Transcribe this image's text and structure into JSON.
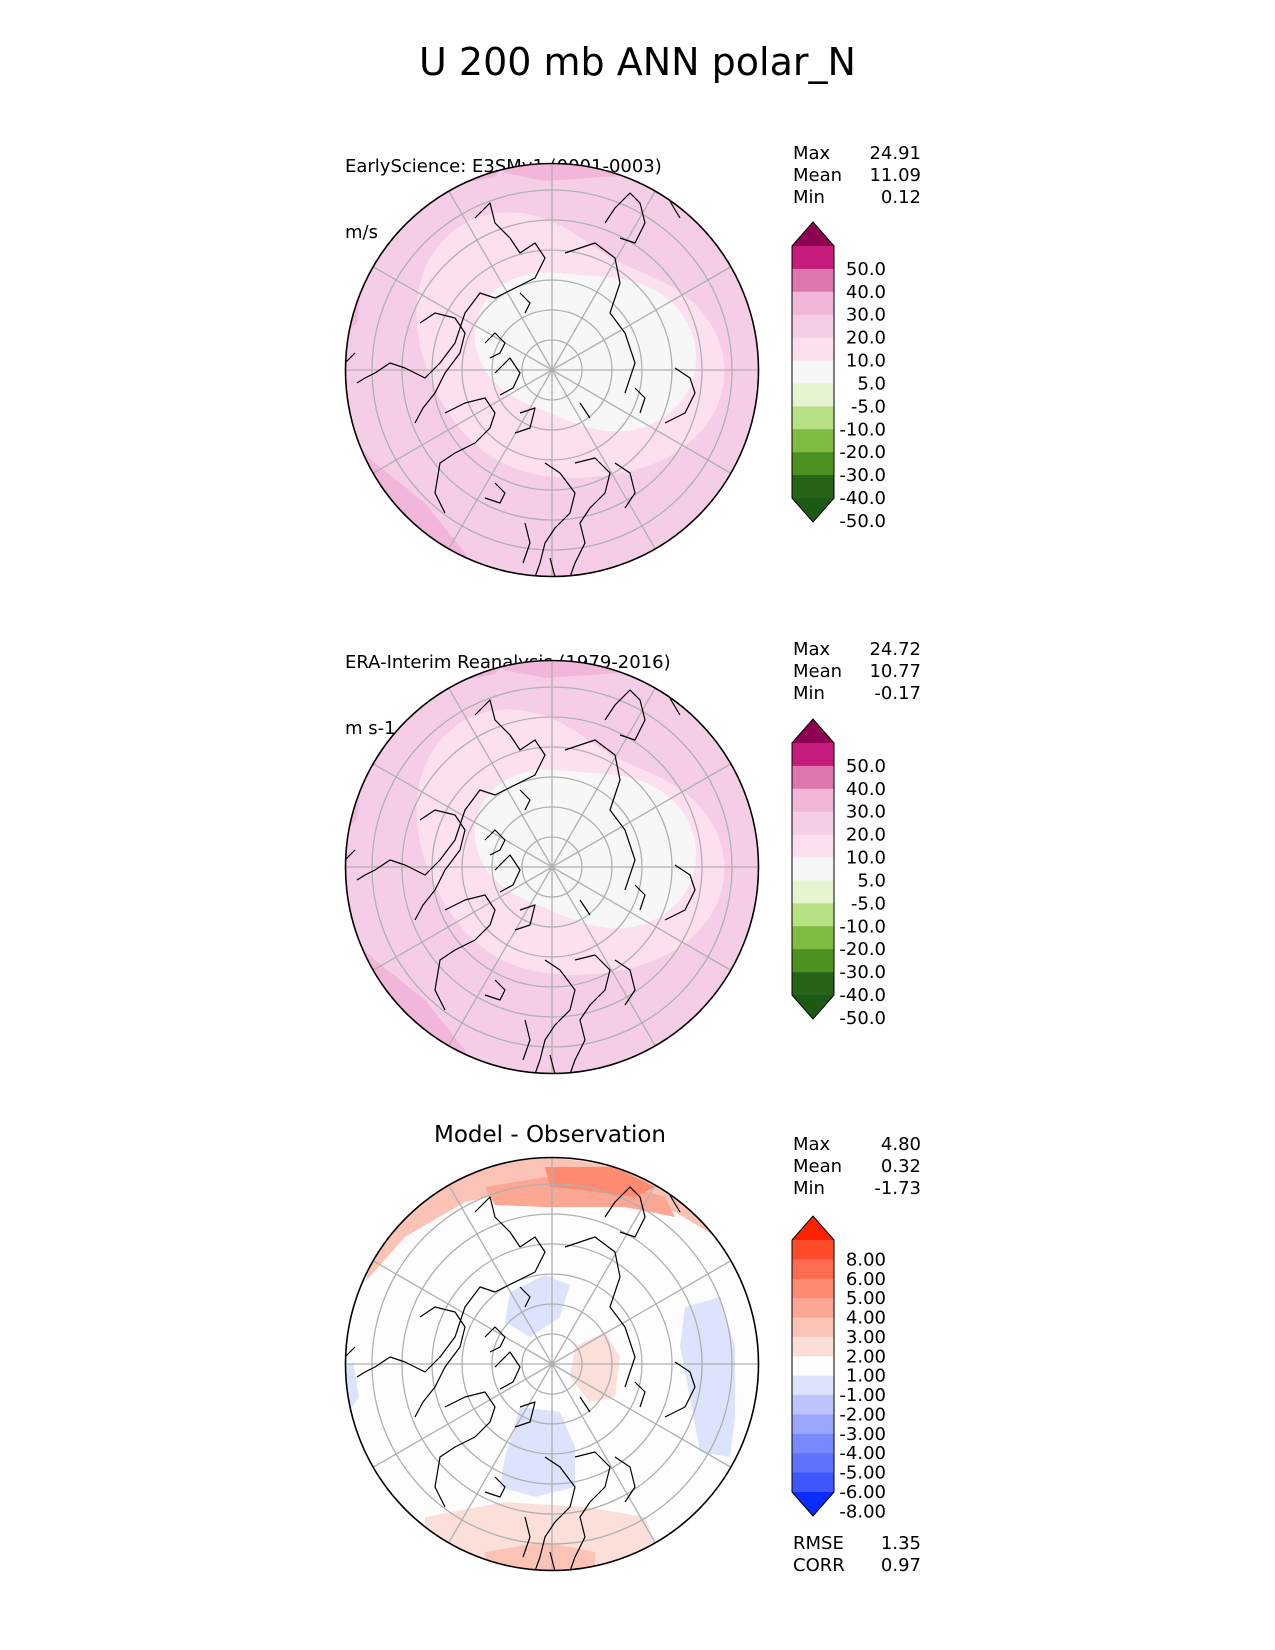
{
  "figure": {
    "title": "U 200 mb ANN polar_N"
  },
  "panels": {
    "test": {
      "name": "EarlyScience: E3SMv1 (0001-0003)",
      "units": "m/s",
      "stats": {
        "max_label": "Max",
        "max": "24.91",
        "mean_label": "Mean",
        "mean": "11.09",
        "min_label": "Min",
        "min": "0.12"
      }
    },
    "ref": {
      "name": "ERA-Interim Reanalysis (1979-2016)",
      "units": "m s-1",
      "stats": {
        "max_label": "Max",
        "max": "24.72",
        "mean_label": "Mean",
        "mean": "10.77",
        "min_label": "Min",
        "min": "-0.17"
      }
    },
    "diff": {
      "title": "Model - Observation",
      "stats": {
        "max_label": "Max",
        "max": "4.80",
        "mean_label": "Mean",
        "mean": "0.32",
        "min_label": "Min",
        "min": "-1.73"
      },
      "metrics": {
        "rmse_label": "RMSE",
        "rmse": "1.35",
        "corr_label": "CORR",
        "corr": "0.97"
      }
    }
  },
  "chart_data": [
    {
      "type": "heatmap",
      "projection": "north polar stereographic",
      "title": "EarlyScience: E3SMv1 (0001-0003)",
      "units": "m/s",
      "colorbar_ticks": [
        "50.0",
        "40.0",
        "30.0",
        "20.0",
        "10.0",
        "5.0",
        "-5.0",
        "-10.0",
        "-20.0",
        "-30.0",
        "-40.0",
        "-50.0"
      ],
      "colorbar_colors": [
        "#8e0152",
        "#c51b7d",
        "#de77ae",
        "#f1b6da",
        "#f6cde6",
        "#fde0ef",
        "#f7f7f7",
        "#e6f5d0",
        "#b8e186",
        "#7fbc41",
        "#4d9221",
        "#276419",
        "#1f5a15"
      ],
      "stats": {
        "max": 24.91,
        "mean": 11.09,
        "min": 0.12
      }
    },
    {
      "type": "heatmap",
      "projection": "north polar stereographic",
      "title": "ERA-Interim Reanalysis (1979-2016)",
      "units": "m s-1",
      "colorbar_ticks": [
        "50.0",
        "40.0",
        "30.0",
        "20.0",
        "10.0",
        "5.0",
        "-5.0",
        "-10.0",
        "-20.0",
        "-30.0",
        "-40.0",
        "-50.0"
      ],
      "colorbar_colors": [
        "#8e0152",
        "#c51b7d",
        "#de77ae",
        "#f1b6da",
        "#f6cde6",
        "#fde0ef",
        "#f7f7f7",
        "#e6f5d0",
        "#b8e186",
        "#7fbc41",
        "#4d9221",
        "#276419",
        "#1f5a15"
      ],
      "stats": {
        "max": 24.72,
        "mean": 10.77,
        "min": -0.17
      }
    },
    {
      "type": "heatmap",
      "projection": "north polar stereographic",
      "title": "Model - Observation",
      "colorbar_ticks": [
        "8.00",
        "6.00",
        "5.00",
        "4.00",
        "3.00",
        "2.00",
        "1.00",
        "-1.00",
        "-2.00",
        "-3.00",
        "-4.00",
        "-5.00",
        "-6.00",
        "-8.00"
      ],
      "colorbar_colors": [
        "#ff2200",
        "#fe4b2c",
        "#fe6c50",
        "#fe8a72",
        "#fca694",
        "#fbc3b6",
        "#fbdfd8",
        "#fdfdfd",
        "#dde2fd",
        "#bcc5fd",
        "#9aa7fd",
        "#7889fd",
        "#5d72fd",
        "#3e56fd",
        "#0a2cfe"
      ],
      "stats": {
        "max": 4.8,
        "mean": 0.32,
        "min": -1.73,
        "rmse": 1.35,
        "corr": 0.97
      }
    }
  ]
}
